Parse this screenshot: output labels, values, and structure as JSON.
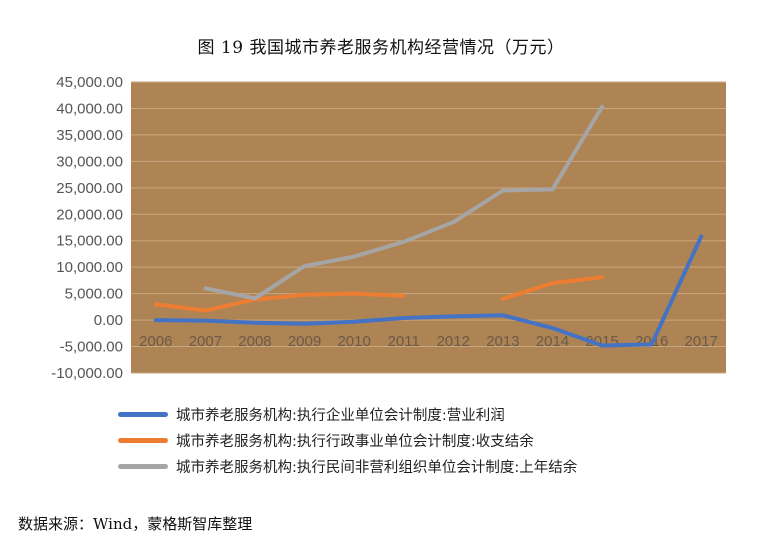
{
  "figure_title": "图 19 我国城市养老服务机构经营情况（万元）",
  "source_note": "数据来源：Wind，蒙格斯智库整理",
  "colors": {
    "plot_bg": "#ae8454",
    "grid": "#c9a77f",
    "series_1": "#4472c4",
    "series_2": "#ed7d31",
    "series_3": "#a5a5a5"
  },
  "chart_data": {
    "type": "line",
    "title": "",
    "xlabel": "",
    "ylabel": "",
    "ylim": [
      -10000,
      45000
    ],
    "ytick_step": 5000,
    "y_ticks": [
      "-10,000.00",
      "-5,000.00",
      "0.00",
      "5,000.00",
      "10,000.00",
      "15,000.00",
      "20,000.00",
      "25,000.00",
      "30,000.00",
      "35,000.00",
      "40,000.00",
      "45,000.00"
    ],
    "grid": true,
    "legend_position": "bottom",
    "categories": [
      "2006",
      "2007",
      "2008",
      "2009",
      "2010",
      "2011",
      "2012",
      "2013",
      "2014",
      "2015",
      "2016",
      "2017"
    ],
    "series": [
      {
        "name": "城市养老服务机构:执行企业单位会计制度:营业利润",
        "values": [
          0,
          -100,
          -500,
          -700,
          -300,
          400,
          700,
          900,
          -1500,
          -4800,
          -4600,
          15800
        ]
      },
      {
        "name": "城市养老服务机构:执行行政事业单位会计制度:收支结余",
        "values": [
          3000,
          1800,
          3900,
          4800,
          5000,
          4600,
          null,
          4000,
          7000,
          8100,
          null,
          null
        ]
      },
      {
        "name": "城市养老服务机构:执行民间非营利组织单位会计制度:上年结余",
        "values": [
          null,
          6000,
          4100,
          10200,
          12000,
          14800,
          18500,
          24500,
          24700,
          40300,
          null,
          null
        ]
      }
    ]
  }
}
